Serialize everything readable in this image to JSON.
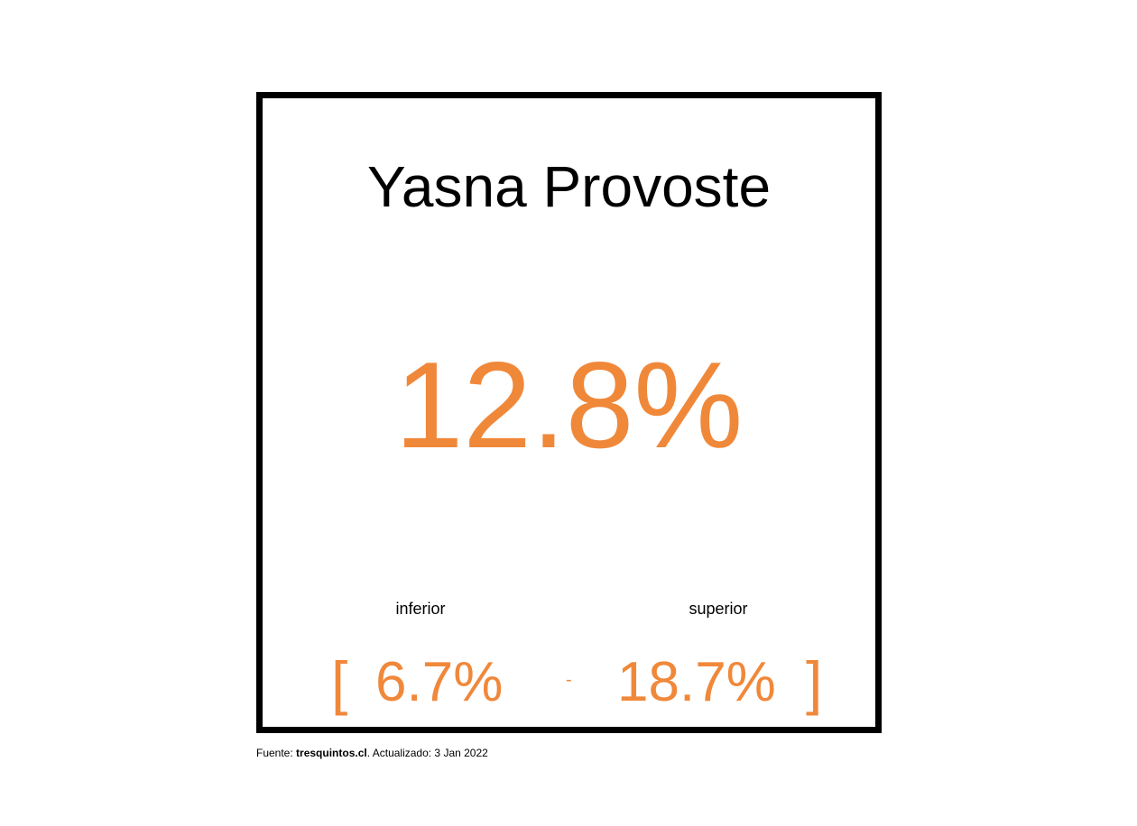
{
  "chart_data": {
    "type": "table",
    "title": "Yasna Provoste",
    "estimate": "12.8%",
    "interval": {
      "lower_label": "inferior",
      "lower_value": "6.7%",
      "upper_label": "superior",
      "upper_value": "18.7%",
      "open_bracket": "[",
      "separator": "-",
      "close_bracket": "]"
    }
  },
  "footer": {
    "prefix": "Fuente: ",
    "source": "tresquintos.cl",
    "suffix": ". Actualizado: 3 Jan 2022"
  },
  "colors": {
    "accent": "#f0883a",
    "text": "#000000",
    "frame": "#000000"
  }
}
